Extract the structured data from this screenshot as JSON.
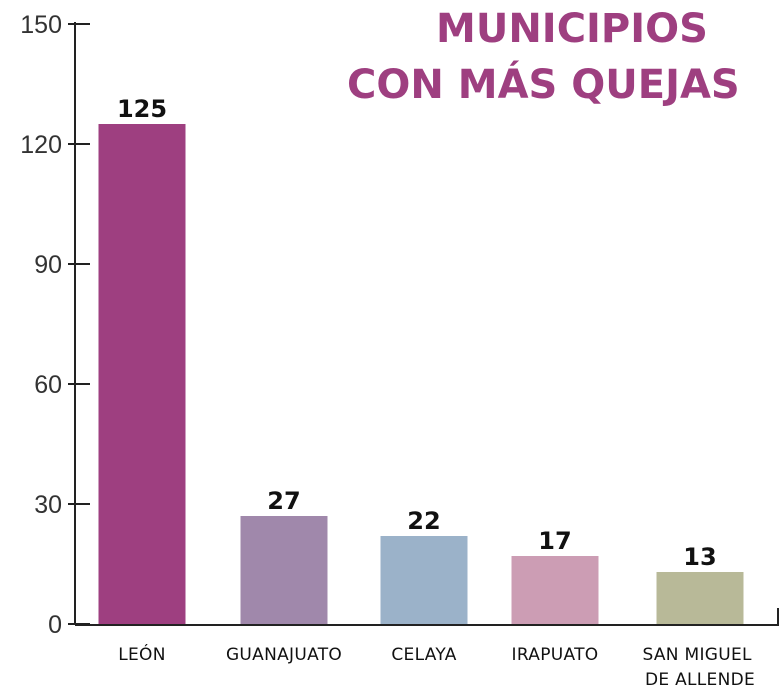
{
  "chart_data": {
    "type": "bar",
    "title": [
      "MUNICIPIOS",
      "CON MÁS QUEJAS"
    ],
    "categories": [
      "LEÓN",
      "GUANAJUATO",
      "CELAYA",
      "IRAPUATO",
      "SAN MIGUEL DE ALLENDE"
    ],
    "values": [
      125,
      27,
      22,
      17,
      13
    ],
    "colors": [
      "#9e3f80",
      "#a088ab",
      "#9bb2c9",
      "#cc9db4",
      "#b8b998"
    ],
    "ylim": [
      0,
      150
    ],
    "yticks": [
      0,
      30,
      60,
      90,
      120,
      150
    ],
    "grid": false
  }
}
